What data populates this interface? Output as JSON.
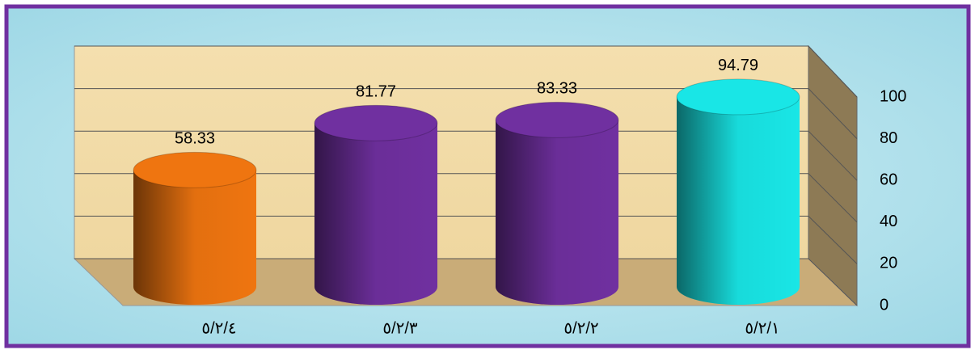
{
  "chart_data": {
    "type": "bar3d-cylinder",
    "categories": [
      "٥/٢/٤",
      "٥/٢/٣",
      "٥/٢/٢",
      "٥/٢/١"
    ],
    "values": [
      58.33,
      81.77,
      83.33,
      94.79
    ],
    "colors": [
      "#ef7510",
      "#7030a0",
      "#7030a0",
      "#19e6e6"
    ],
    "ylim": [
      0,
      100
    ],
    "yticks": [
      0,
      20,
      40,
      60,
      80,
      100
    ],
    "grid": true
  }
}
